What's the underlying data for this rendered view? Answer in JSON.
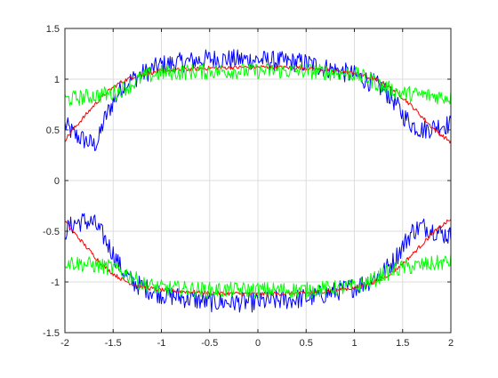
{
  "chart_data": {
    "type": "line",
    "title": "",
    "xlabel": "",
    "ylabel": "",
    "xlim": [
      -2,
      2
    ],
    "ylim": [
      -1.5,
      1.5
    ],
    "grid": true,
    "xticks": [
      "-2",
      "-1.5",
      "-1",
      "-0.5",
      "0",
      "0.5",
      "1",
      "1.5",
      "2"
    ],
    "yticks": [
      "-1.5",
      "-1",
      "-0.5",
      "0",
      "0.5",
      "1",
      "1.5"
    ],
    "series": [
      {
        "color": "#ff0000",
        "noise_amplitude": 0.02,
        "upper": [
          [
            -2.0,
            0.4
          ],
          [
            -1.9,
            0.52
          ],
          [
            -1.8,
            0.63
          ],
          [
            -1.7,
            0.74
          ],
          [
            -1.6,
            0.84
          ],
          [
            -1.5,
            0.92
          ],
          [
            -1.4,
            0.98
          ],
          [
            -1.3,
            1.02
          ],
          [
            -1.2,
            1.05
          ],
          [
            -1.0,
            1.08
          ],
          [
            -0.5,
            1.11
          ],
          [
            0.0,
            1.12
          ],
          [
            0.5,
            1.11
          ],
          [
            1.0,
            1.06
          ],
          [
            1.2,
            1.0
          ],
          [
            1.3,
            0.96
          ],
          [
            1.4,
            0.9
          ],
          [
            1.5,
            0.82
          ],
          [
            1.6,
            0.73
          ],
          [
            1.7,
            0.63
          ],
          [
            1.8,
            0.53
          ],
          [
            1.9,
            0.45
          ],
          [
            2.0,
            0.38
          ]
        ],
        "lower": [
          [
            -2.0,
            -0.4
          ],
          [
            -1.9,
            -0.52
          ],
          [
            -1.8,
            -0.63
          ],
          [
            -1.7,
            -0.74
          ],
          [
            -1.6,
            -0.84
          ],
          [
            -1.5,
            -0.92
          ],
          [
            -1.4,
            -0.98
          ],
          [
            -1.3,
            -1.02
          ],
          [
            -1.2,
            -1.05
          ],
          [
            -1.0,
            -1.08
          ],
          [
            -0.5,
            -1.11
          ],
          [
            0.0,
            -1.12
          ],
          [
            0.5,
            -1.11
          ],
          [
            1.0,
            -1.06
          ],
          [
            1.2,
            -1.0
          ],
          [
            1.3,
            -0.96
          ],
          [
            1.4,
            -0.9
          ],
          [
            1.5,
            -0.82
          ],
          [
            1.6,
            -0.73
          ],
          [
            1.7,
            -0.63
          ],
          [
            1.8,
            -0.53
          ],
          [
            1.9,
            -0.45
          ],
          [
            2.0,
            -0.38
          ]
        ]
      },
      {
        "color": "#0000ff",
        "noise_amplitude": 0.1,
        "upper": [
          [
            -2.0,
            0.55
          ],
          [
            -1.9,
            0.45
          ],
          [
            -1.8,
            0.4
          ],
          [
            -1.7,
            0.35
          ],
          [
            -1.65,
            0.4
          ],
          [
            -1.6,
            0.58
          ],
          [
            -1.5,
            0.78
          ],
          [
            -1.4,
            0.93
          ],
          [
            -1.3,
            1.0
          ],
          [
            -1.2,
            1.05
          ],
          [
            -1.0,
            1.14
          ],
          [
            -0.5,
            1.2
          ],
          [
            0.0,
            1.19
          ],
          [
            0.5,
            1.16
          ],
          [
            1.0,
            1.04
          ],
          [
            1.2,
            0.96
          ],
          [
            1.3,
            0.9
          ],
          [
            1.4,
            0.8
          ],
          [
            1.5,
            0.65
          ],
          [
            1.6,
            0.55
          ],
          [
            1.7,
            0.5
          ],
          [
            1.8,
            0.52
          ],
          [
            1.9,
            0.55
          ],
          [
            2.0,
            0.55
          ]
        ],
        "lower": [
          [
            -2.0,
            -0.5
          ],
          [
            -1.9,
            -0.42
          ],
          [
            -1.8,
            -0.4
          ],
          [
            -1.7,
            -0.42
          ],
          [
            -1.6,
            -0.55
          ],
          [
            -1.5,
            -0.72
          ],
          [
            -1.4,
            -0.9
          ],
          [
            -1.3,
            -1.0
          ],
          [
            -1.2,
            -1.05
          ],
          [
            -1.0,
            -1.12
          ],
          [
            -0.5,
            -1.2
          ],
          [
            0.0,
            -1.2
          ],
          [
            0.5,
            -1.16
          ],
          [
            1.0,
            -1.05
          ],
          [
            1.2,
            -0.97
          ],
          [
            1.3,
            -0.9
          ],
          [
            1.4,
            -0.8
          ],
          [
            1.5,
            -0.65
          ],
          [
            1.6,
            -0.5
          ],
          [
            1.7,
            -0.45
          ],
          [
            1.8,
            -0.48
          ],
          [
            1.9,
            -0.52
          ],
          [
            2.0,
            -0.55
          ]
        ]
      },
      {
        "color": "#00ff00",
        "noise_amplitude": 0.08,
        "upper": [
          [
            -2.0,
            0.8
          ],
          [
            -1.5,
            0.86
          ],
          [
            -1.3,
            0.95
          ],
          [
            -1.2,
            1.02
          ],
          [
            -1.0,
            1.06
          ],
          [
            -0.5,
            1.08
          ],
          [
            0.0,
            1.08
          ],
          [
            0.5,
            1.08
          ],
          [
            1.0,
            1.05
          ],
          [
            1.2,
            0.98
          ],
          [
            1.3,
            0.92
          ],
          [
            1.5,
            0.86
          ],
          [
            2.0,
            0.82
          ]
        ],
        "lower": [
          [
            -2.0,
            -0.8
          ],
          [
            -1.5,
            -0.86
          ],
          [
            -1.3,
            -0.95
          ],
          [
            -1.2,
            -1.02
          ],
          [
            -1.0,
            -1.06
          ],
          [
            -0.5,
            -1.08
          ],
          [
            0.0,
            -1.08
          ],
          [
            0.5,
            -1.08
          ],
          [
            1.0,
            -1.05
          ],
          [
            1.2,
            -0.98
          ],
          [
            1.3,
            -0.92
          ],
          [
            1.5,
            -0.86
          ],
          [
            2.0,
            -0.8
          ]
        ]
      }
    ]
  }
}
